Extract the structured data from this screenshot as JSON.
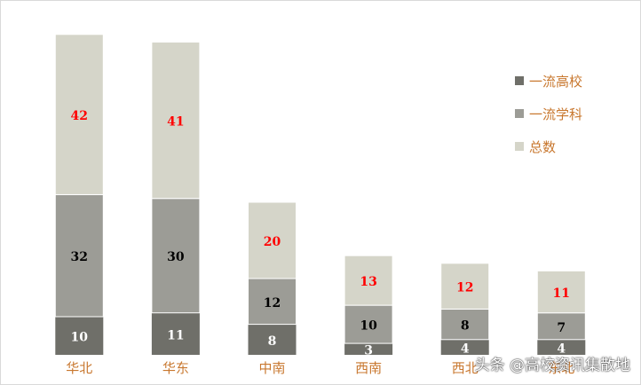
{
  "chart_data": {
    "type": "bar",
    "stacked": true,
    "categories": [
      "华北",
      "华东",
      "中南",
      "西南",
      "西北",
      "东北"
    ],
    "series": [
      {
        "name": "一流高校",
        "values": [
          10,
          11,
          8,
          3,
          4,
          4
        ],
        "color": "#6f6f69",
        "label_color": "#ffffff"
      },
      {
        "name": "一流学科",
        "values": [
          32,
          30,
          12,
          10,
          8,
          7
        ],
        "color": "#9c9c96",
        "label_color": "#000000"
      },
      {
        "name": "总数",
        "values": [
          42,
          41,
          20,
          13,
          12,
          11
        ],
        "color": "#d5d5c9",
        "label_color": "#ff0000"
      }
    ],
    "ylim": [
      0,
      84
    ],
    "grid": false,
    "legend_position": "right",
    "category_label_color": "#c8772e"
  },
  "watermark": "头条 @高校资讯集散地"
}
